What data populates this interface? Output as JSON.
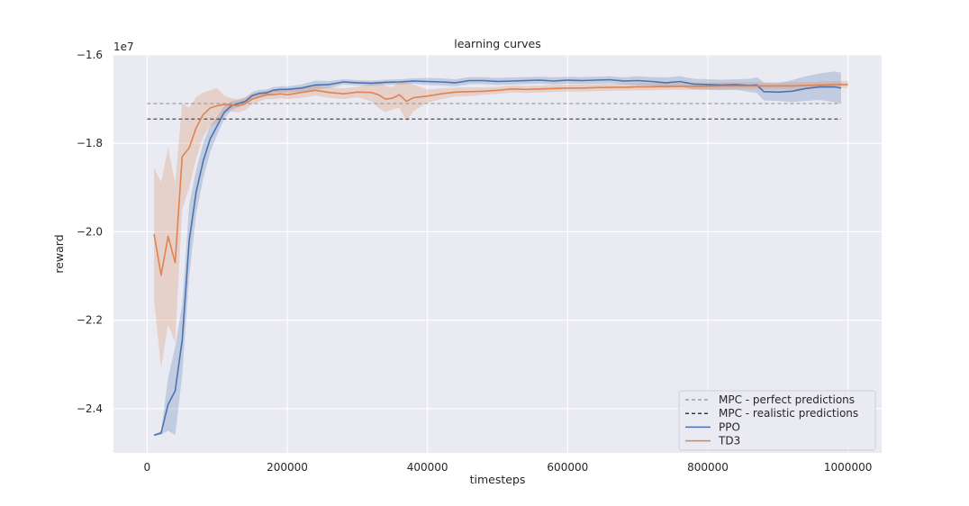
{
  "chart_data": {
    "type": "line",
    "title": "learning curves",
    "xlabel": "timesteps",
    "ylabel": "reward",
    "y_offset_label": "1e7",
    "xlim": [
      -48000,
      1048000
    ],
    "ylim": [
      -2.5,
      -1.6
    ],
    "x_ticks": [
      0,
      200000,
      400000,
      600000,
      800000,
      1000000
    ],
    "x_tick_labels": [
      "0",
      "200000",
      "400000",
      "600000",
      "800000",
      "1000000"
    ],
    "y_ticks": [
      -1.6,
      -1.8,
      -2.0,
      -2.2,
      -2.4
    ],
    "y_tick_labels": [
      "−1.6",
      "−1.8",
      "−2.0",
      "−2.2",
      "−2.4"
    ],
    "grid": true,
    "legend_position": "bottom-right",
    "colors": {
      "background": "#eaeaf2",
      "grid": "#ffffff",
      "ppo": "#4c72b0",
      "td3": "#dd8452",
      "mpc_perfect": "#a0a0a0",
      "mpc_realistic": "#3a3a3a"
    },
    "reference_lines": [
      {
        "name": "MPC - perfect predictions",
        "y": -1.71,
        "x_range": [
          0,
          990000
        ],
        "style": "dashed",
        "color": "#a0a0a0"
      },
      {
        "name": "MPC - realistic predictions",
        "y": -1.745,
        "x_range": [
          0,
          990000
        ],
        "style": "dashed",
        "color": "#3a3a3a"
      }
    ],
    "series": [
      {
        "name": "PPO",
        "color": "#4c72b0",
        "x": [
          10000,
          20000,
          30000,
          40000,
          50000,
          60000,
          70000,
          80000,
          90000,
          100000,
          110000,
          120000,
          130000,
          140000,
          150000,
          160000,
          170000,
          180000,
          190000,
          200000,
          220000,
          240000,
          260000,
          280000,
          300000,
          320000,
          340000,
          360000,
          380000,
          400000,
          420000,
          440000,
          460000,
          480000,
          500000,
          520000,
          540000,
          560000,
          580000,
          600000,
          620000,
          640000,
          660000,
          680000,
          700000,
          720000,
          740000,
          760000,
          780000,
          800000,
          820000,
          840000,
          860000,
          870000,
          880000,
          900000,
          920000,
          940000,
          960000,
          980000,
          990000
        ],
        "y": [
          -2.46,
          -2.455,
          -2.39,
          -2.36,
          -2.245,
          -2.02,
          -1.91,
          -1.84,
          -1.79,
          -1.76,
          -1.73,
          -1.715,
          -1.71,
          -1.705,
          -1.692,
          -1.687,
          -1.686,
          -1.68,
          -1.678,
          -1.678,
          -1.675,
          -1.668,
          -1.667,
          -1.661,
          -1.663,
          -1.664,
          -1.662,
          -1.661,
          -1.659,
          -1.66,
          -1.661,
          -1.663,
          -1.658,
          -1.658,
          -1.66,
          -1.659,
          -1.658,
          -1.657,
          -1.659,
          -1.657,
          -1.658,
          -1.657,
          -1.656,
          -1.659,
          -1.658,
          -1.66,
          -1.663,
          -1.66,
          -1.666,
          -1.667,
          -1.668,
          -1.667,
          -1.669,
          -1.668,
          -1.683,
          -1.684,
          -1.682,
          -1.676,
          -1.672,
          -1.672,
          -1.675
        ],
        "band_halfwidth": [
          0.002,
          0.004,
          0.06,
          0.1,
          0.08,
          0.08,
          0.05,
          0.04,
          0.03,
          0.02,
          0.015,
          0.01,
          0.008,
          0.008,
          0.008,
          0.008,
          0.008,
          0.007,
          0.007,
          0.007,
          0.008,
          0.01,
          0.008,
          0.006,
          0.006,
          0.006,
          0.006,
          0.006,
          0.006,
          0.008,
          0.008,
          0.008,
          0.008,
          0.008,
          0.008,
          0.008,
          0.008,
          0.008,
          0.008,
          0.008,
          0.008,
          0.008,
          0.008,
          0.008,
          0.01,
          0.01,
          0.012,
          0.012,
          0.012,
          0.012,
          0.012,
          0.012,
          0.015,
          0.018,
          0.02,
          0.02,
          0.025,
          0.028,
          0.03,
          0.035,
          0.035
        ]
      },
      {
        "name": "TD3",
        "color": "#dd8452",
        "x": [
          10000,
          20000,
          30000,
          40000,
          50000,
          60000,
          70000,
          80000,
          90000,
          100000,
          110000,
          120000,
          130000,
          140000,
          150000,
          160000,
          170000,
          180000,
          190000,
          200000,
          220000,
          240000,
          260000,
          280000,
          300000,
          320000,
          330000,
          340000,
          350000,
          360000,
          370000,
          380000,
          400000,
          420000,
          440000,
          460000,
          480000,
          500000,
          520000,
          540000,
          560000,
          580000,
          600000,
          620000,
          640000,
          660000,
          680000,
          700000,
          720000,
          740000,
          760000,
          780000,
          800000,
          820000,
          840000,
          860000,
          880000,
          900000,
          920000,
          940000,
          960000,
          980000,
          1000000
        ],
        "y": [
          -2.005,
          -2.098,
          -2.01,
          -2.07,
          -1.83,
          -1.81,
          -1.765,
          -1.735,
          -1.72,
          -1.715,
          -1.712,
          -1.713,
          -1.715,
          -1.71,
          -1.7,
          -1.695,
          -1.69,
          -1.69,
          -1.688,
          -1.69,
          -1.685,
          -1.68,
          -1.685,
          -1.688,
          -1.684,
          -1.685,
          -1.69,
          -1.7,
          -1.698,
          -1.69,
          -1.705,
          -1.697,
          -1.693,
          -1.688,
          -1.684,
          -1.683,
          -1.682,
          -1.68,
          -1.677,
          -1.678,
          -1.677,
          -1.676,
          -1.675,
          -1.675,
          -1.674,
          -1.673,
          -1.673,
          -1.672,
          -1.672,
          -1.671,
          -1.671,
          -1.671,
          -1.671,
          -1.67,
          -1.67,
          -1.67,
          -1.67,
          -1.67,
          -1.67,
          -1.669,
          -1.668,
          -1.667,
          -1.667
        ],
        "band_halfwidth": [
          0.15,
          0.21,
          0.2,
          0.18,
          0.12,
          0.09,
          0.07,
          0.05,
          0.04,
          0.04,
          0.02,
          0.015,
          0.015,
          0.015,
          0.012,
          0.01,
          0.01,
          0.01,
          0.01,
          0.01,
          0.012,
          0.012,
          0.012,
          0.012,
          0.012,
          0.02,
          0.03,
          0.03,
          0.025,
          0.03,
          0.045,
          0.03,
          0.015,
          0.012,
          0.01,
          0.01,
          0.008,
          0.008,
          0.008,
          0.008,
          0.008,
          0.008,
          0.008,
          0.008,
          0.008,
          0.008,
          0.008,
          0.008,
          0.008,
          0.008,
          0.008,
          0.008,
          0.008,
          0.008,
          0.008,
          0.008,
          0.008,
          0.008,
          0.008,
          0.008,
          0.008,
          0.008,
          0.008
        ]
      }
    ],
    "legend": [
      {
        "label": "MPC - perfect predictions",
        "color": "#a0a0a0",
        "style": "dashed"
      },
      {
        "label": "MPC - realistic predictions",
        "color": "#3a3a3a",
        "style": "dashed"
      },
      {
        "label": "PPO",
        "color": "#4c72b0",
        "style": "solid"
      },
      {
        "label": "TD3",
        "color": "#dd8452",
        "style": "solid"
      }
    ]
  }
}
